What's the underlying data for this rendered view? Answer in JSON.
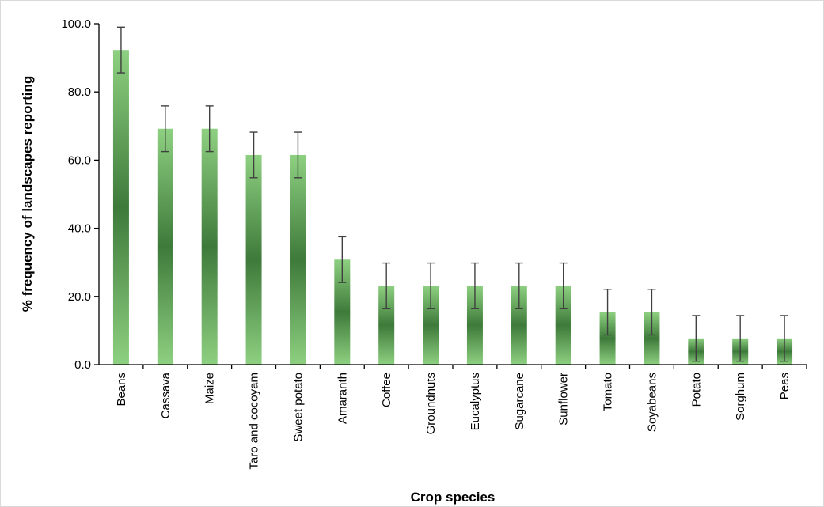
{
  "chart_data": {
    "type": "bar",
    "title": "",
    "xlabel": "Crop species",
    "ylabel": "% frequency of landscapes reporting",
    "ylim": [
      0,
      100
    ],
    "yticks": [
      0,
      20,
      40,
      60,
      80,
      100
    ],
    "ytick_labels": [
      "0.0",
      "20.0",
      "40.0",
      "60.0",
      "80.0",
      "100.0"
    ],
    "grid": false,
    "legend": "none",
    "categories": [
      "Beans",
      "Cassava",
      "Maize",
      "Taro and cocoyam",
      "Sweet potato",
      "Amaranth",
      "Coffee",
      "Groundnuts",
      "Eucalyptus",
      "Sugarcane",
      "Sunflower",
      "Tomato",
      "Soyabeans",
      "Potato",
      "Sorghum",
      "Peas"
    ],
    "values": [
      92.3,
      69.2,
      69.2,
      61.5,
      61.5,
      30.8,
      23.1,
      23.1,
      23.1,
      23.1,
      23.1,
      15.4,
      15.4,
      7.7,
      7.7,
      7.7
    ],
    "error": [
      6.7,
      6.7,
      6.7,
      6.7,
      6.7,
      6.7,
      6.7,
      6.7,
      6.7,
      6.7,
      6.7,
      6.7,
      6.7,
      6.7,
      6.7,
      6.7
    ],
    "colors": {
      "bar_light": "#8ed081",
      "bar_dark": "#3e7a3a",
      "axis": "#000000",
      "error_bar": "#404040"
    }
  }
}
